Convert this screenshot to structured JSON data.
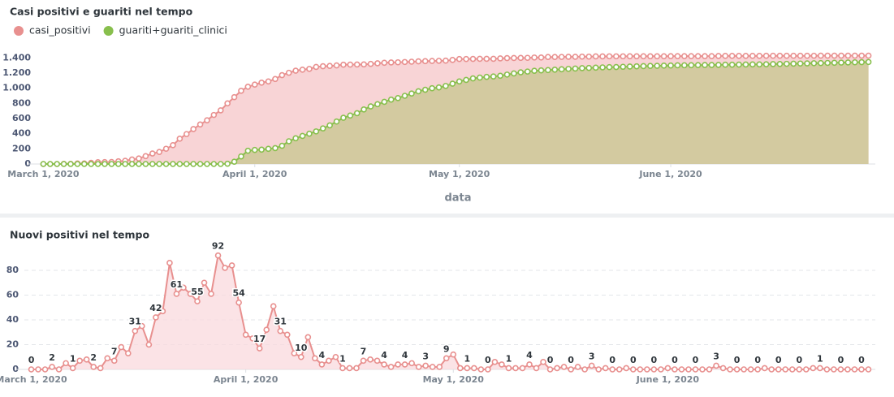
{
  "chart_data": [
    {
      "type": "line",
      "title": "Casi positivi e guariti nel tempo",
      "x_label": "data",
      "area": true,
      "grid": false,
      "legend": "top-left",
      "x": [
        "2020-03-01",
        "2020-03-02",
        "2020-03-03",
        "2020-03-04",
        "2020-03-05",
        "2020-03-06",
        "2020-03-07",
        "2020-03-08",
        "2020-03-09",
        "2020-03-10",
        "2020-03-11",
        "2020-03-12",
        "2020-03-13",
        "2020-03-14",
        "2020-03-15",
        "2020-03-16",
        "2020-03-17",
        "2020-03-18",
        "2020-03-19",
        "2020-03-20",
        "2020-03-21",
        "2020-03-22",
        "2020-03-23",
        "2020-03-24",
        "2020-03-25",
        "2020-03-26",
        "2020-03-27",
        "2020-03-28",
        "2020-03-29",
        "2020-03-30",
        "2020-03-31",
        "2020-04-01",
        "2020-04-02",
        "2020-04-03",
        "2020-04-04",
        "2020-04-05",
        "2020-04-06",
        "2020-04-07",
        "2020-04-08",
        "2020-04-09",
        "2020-04-10",
        "2020-04-11",
        "2020-04-12",
        "2020-04-13",
        "2020-04-14",
        "2020-04-15",
        "2020-04-16",
        "2020-04-17",
        "2020-04-18",
        "2020-04-19",
        "2020-04-20",
        "2020-04-21",
        "2020-04-22",
        "2020-04-23",
        "2020-04-24",
        "2020-04-25",
        "2020-04-26",
        "2020-04-27",
        "2020-04-28",
        "2020-04-29",
        "2020-04-30",
        "2020-05-01",
        "2020-05-02",
        "2020-05-03",
        "2020-05-04",
        "2020-05-05",
        "2020-05-06",
        "2020-05-07",
        "2020-05-08",
        "2020-05-09",
        "2020-05-10",
        "2020-05-11",
        "2020-05-12",
        "2020-05-13",
        "2020-05-14",
        "2020-05-15",
        "2020-05-16",
        "2020-05-17",
        "2020-05-18",
        "2020-05-19",
        "2020-05-20",
        "2020-05-21",
        "2020-05-22",
        "2020-05-23",
        "2020-05-24",
        "2020-05-25",
        "2020-05-26",
        "2020-05-27",
        "2020-05-28",
        "2020-05-29",
        "2020-05-30",
        "2020-05-31",
        "2020-06-01",
        "2020-06-02",
        "2020-06-03",
        "2020-06-04",
        "2020-06-05",
        "2020-06-06",
        "2020-06-07",
        "2020-06-08",
        "2020-06-09",
        "2020-06-10",
        "2020-06-11",
        "2020-06-12",
        "2020-06-13",
        "2020-06-14",
        "2020-06-15",
        "2020-06-16",
        "2020-06-17",
        "2020-06-18",
        "2020-06-19",
        "2020-06-20",
        "2020-06-21",
        "2020-06-22",
        "2020-06-23",
        "2020-06-24",
        "2020-06-25",
        "2020-06-26",
        "2020-06-27",
        "2020-06-28",
        "2020-06-29",
        "2020-06-30"
      ],
      "series": [
        {
          "name": "casi_positivi",
          "color": "#e8908f",
          "fill": "#f6c6c8",
          "values": [
            0,
            0,
            0,
            2,
            2,
            7,
            8,
            15,
            23,
            25,
            26,
            35,
            42,
            60,
            73,
            104,
            139,
            159,
            201,
            248,
            334,
            395,
            461,
            522,
            577,
            647,
            708,
            800,
            882,
            966,
            1020,
            1048,
            1073,
            1090,
            1122,
            1173,
            1204,
            1232,
            1245,
            1255,
            1281,
            1290,
            1294,
            1301,
            1311,
            1312,
            1313,
            1314,
            1321,
            1329,
            1336,
            1340,
            1342,
            1346,
            1350,
            1355,
            1357,
            1360,
            1362,
            1364,
            1373,
            1385,
            1386,
            1387,
            1388,
            1388,
            1388,
            1394,
            1398,
            1399,
            1400,
            1401,
            1405,
            1406,
            1412,
            1412,
            1413,
            1415,
            1415,
            1417,
            1417,
            1420,
            1420,
            1421,
            1421,
            1421,
            1422,
            1422,
            1422,
            1422,
            1422,
            1422,
            1423,
            1423,
            1423,
            1423,
            1423,
            1423,
            1423,
            1426,
            1427,
            1427,
            1427,
            1427,
            1427,
            1427,
            1428,
            1428,
            1428,
            1428,
            1428,
            1428,
            1428,
            1429,
            1430,
            1430,
            1430,
            1430,
            1430,
            1430,
            1430,
            1430
          ]
        },
        {
          "name": "guariti+guariti_clinici",
          "color": "#88bf4d",
          "fill": "#c7c78e",
          "values": [
            0,
            0,
            0,
            0,
            0,
            0,
            0,
            0,
            0,
            0,
            0,
            0,
            0,
            0,
            0,
            0,
            0,
            0,
            0,
            0,
            0,
            0,
            0,
            0,
            0,
            0,
            0,
            3,
            30,
            100,
            175,
            185,
            190,
            200,
            210,
            240,
            300,
            340,
            370,
            400,
            430,
            470,
            510,
            560,
            610,
            640,
            670,
            720,
            760,
            790,
            820,
            850,
            870,
            900,
            930,
            960,
            980,
            1000,
            1010,
            1030,
            1060,
            1090,
            1110,
            1130,
            1140,
            1150,
            1155,
            1165,
            1180,
            1195,
            1210,
            1220,
            1230,
            1235,
            1240,
            1245,
            1250,
            1255,
            1260,
            1265,
            1268,
            1272,
            1275,
            1278,
            1280,
            1283,
            1286,
            1289,
            1292,
            1294,
            1296,
            1298,
            1300,
            1302,
            1303,
            1304,
            1305,
            1306,
            1307,
            1308,
            1310,
            1311,
            1312,
            1313,
            1314,
            1315,
            1316,
            1318,
            1320,
            1322,
            1324,
            1326,
            1328,
            1330,
            1332,
            1334,
            1336,
            1338,
            1340,
            1342,
            1344,
            1346
          ]
        }
      ],
      "xlim": [
        "2020-02-29",
        "2020-07-01"
      ],
      "xticks": [
        {
          "value": "2020-03-01",
          "label": "March 1, 2020"
        },
        {
          "value": "2020-04-01",
          "label": "April 1, 2020"
        },
        {
          "value": "2020-05-01",
          "label": "May 1, 2020"
        },
        {
          "value": "2020-06-01",
          "label": "June 1, 2020"
        }
      ],
      "ylim": [
        0,
        1500
      ],
      "yticks": [
        0,
        200,
        400,
        600,
        800,
        {
          "value": 1000,
          "label": "1.000"
        },
        {
          "value": 1200,
          "label": "1.200"
        },
        {
          "value": 1400,
          "label": "1.400"
        }
      ]
    },
    {
      "type": "line",
      "title": "Nuovi positivi nel tempo",
      "area": true,
      "grid": true,
      "data_labels": true,
      "x": [
        "2020-03-01",
        "2020-03-02",
        "2020-03-03",
        "2020-03-04",
        "2020-03-05",
        "2020-03-06",
        "2020-03-07",
        "2020-03-08",
        "2020-03-09",
        "2020-03-10",
        "2020-03-11",
        "2020-03-12",
        "2020-03-13",
        "2020-03-14",
        "2020-03-15",
        "2020-03-16",
        "2020-03-17",
        "2020-03-18",
        "2020-03-19",
        "2020-03-20",
        "2020-03-21",
        "2020-03-22",
        "2020-03-23",
        "2020-03-24",
        "2020-03-25",
        "2020-03-26",
        "2020-03-27",
        "2020-03-28",
        "2020-03-29",
        "2020-03-30",
        "2020-03-31",
        "2020-04-01",
        "2020-04-02",
        "2020-04-03",
        "2020-04-04",
        "2020-04-05",
        "2020-04-06",
        "2020-04-07",
        "2020-04-08",
        "2020-04-09",
        "2020-04-10",
        "2020-04-11",
        "2020-04-12",
        "2020-04-13",
        "2020-04-14",
        "2020-04-15",
        "2020-04-16",
        "2020-04-17",
        "2020-04-18",
        "2020-04-19",
        "2020-04-20",
        "2020-04-21",
        "2020-04-22",
        "2020-04-23",
        "2020-04-24",
        "2020-04-25",
        "2020-04-26",
        "2020-04-27",
        "2020-04-28",
        "2020-04-29",
        "2020-04-30",
        "2020-05-01",
        "2020-05-02",
        "2020-05-03",
        "2020-05-04",
        "2020-05-05",
        "2020-05-06",
        "2020-05-07",
        "2020-05-08",
        "2020-05-09",
        "2020-05-10",
        "2020-05-11",
        "2020-05-12",
        "2020-05-13",
        "2020-05-14",
        "2020-05-15",
        "2020-05-16",
        "2020-05-17",
        "2020-05-18",
        "2020-05-19",
        "2020-05-20",
        "2020-05-21",
        "2020-05-22",
        "2020-05-23",
        "2020-05-24",
        "2020-05-25",
        "2020-05-26",
        "2020-05-27",
        "2020-05-28",
        "2020-05-29",
        "2020-05-30",
        "2020-05-31",
        "2020-06-01",
        "2020-06-02",
        "2020-06-03",
        "2020-06-04",
        "2020-06-05",
        "2020-06-06",
        "2020-06-07",
        "2020-06-08",
        "2020-06-09",
        "2020-06-10",
        "2020-06-11",
        "2020-06-12",
        "2020-06-13",
        "2020-06-14",
        "2020-06-15",
        "2020-06-16",
        "2020-06-17",
        "2020-06-18",
        "2020-06-19",
        "2020-06-20",
        "2020-06-21",
        "2020-06-22",
        "2020-06-23",
        "2020-06-24",
        "2020-06-25",
        "2020-06-26",
        "2020-06-27",
        "2020-06-28",
        "2020-06-29",
        "2020-06-30"
      ],
      "values": [
        0,
        0,
        0,
        2,
        0,
        5,
        1,
        7,
        8,
        2,
        1,
        9,
        7,
        18,
        13,
        31,
        35,
        20,
        42,
        47,
        86,
        61,
        66,
        61,
        55,
        70,
        61,
        92,
        82,
        84,
        54,
        28,
        25,
        17,
        32,
        51,
        31,
        28,
        13,
        10,
        26,
        9,
        4,
        7,
        10,
        1,
        1,
        1,
        7,
        8,
        7,
        4,
        2,
        4,
        4,
        5,
        2,
        3,
        2,
        2,
        9,
        12,
        1,
        1,
        1,
        0,
        0,
        6,
        4,
        1,
        1,
        1,
        4,
        1,
        6,
        0,
        1,
        2,
        0,
        2,
        0,
        3,
        0,
        1,
        0,
        0,
        1,
        0,
        0,
        0,
        0,
        0,
        1,
        0,
        0,
        0,
        0,
        0,
        0,
        3,
        1,
        0,
        0,
        0,
        0,
        0,
        1,
        0,
        0,
        0,
        0,
        0,
        0,
        1,
        1,
        0,
        0,
        0,
        0,
        0,
        0,
        0
      ],
      "color": "#e8908f",
      "fill": "#fadadd",
      "xlim": [
        "2020-02-29",
        "2020-07-01"
      ],
      "xticks": [
        {
          "value": "2020-03-01",
          "label": "March 1, 2020"
        },
        {
          "value": "2020-04-01",
          "label": "April 1, 2020"
        },
        {
          "value": "2020-05-01",
          "label": "May 1, 2020"
        },
        {
          "value": "2020-06-01",
          "label": "June 1, 2020"
        }
      ],
      "ylim": [
        0,
        100
      ],
      "yticks": [
        0,
        20,
        40,
        60,
        80
      ]
    }
  ]
}
